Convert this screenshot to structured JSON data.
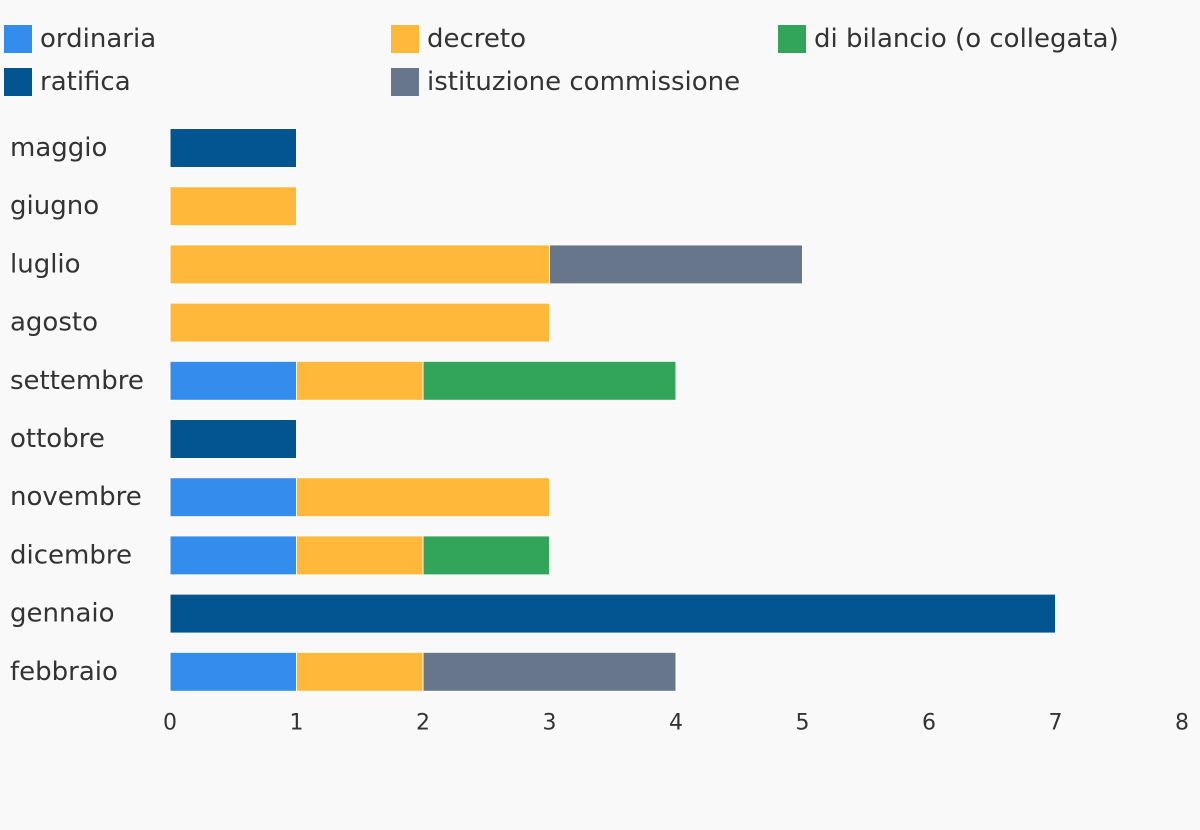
{
  "chart_data": {
    "type": "bar",
    "orientation": "horizontal",
    "stacked": true,
    "title": "",
    "xlabel": "",
    "ylabel": "",
    "categories": [
      "maggio",
      "giugno",
      "luglio",
      "agosto",
      "settembre",
      "ottobre",
      "novembre",
      "dicembre",
      "gennaio",
      "febbraio"
    ],
    "series": [
      {
        "name": "ordinaria",
        "color": "#348ced",
        "values": [
          0,
          0,
          0,
          0,
          1,
          0,
          1,
          1,
          0,
          1
        ]
      },
      {
        "name": "decreto",
        "color": "#ffb83a",
        "values": [
          0,
          1,
          3,
          3,
          1,
          0,
          2,
          1,
          0,
          1
        ]
      },
      {
        "name": "di bilancio (o collegata)",
        "color": "#32a55a",
        "values": [
          0,
          0,
          0,
          0,
          2,
          0,
          0,
          1,
          0,
          0
        ]
      },
      {
        "name": "ratifica",
        "color": "#025591",
        "values": [
          1,
          0,
          0,
          0,
          0,
          1,
          0,
          0,
          7,
          0
        ]
      },
      {
        "name": "istituzione commissione",
        "color": "#68768c",
        "values": [
          0,
          0,
          2,
          0,
          0,
          0,
          0,
          0,
          0,
          2
        ]
      }
    ],
    "xlim": [
      0,
      8
    ],
    "xticks": [
      "0",
      "1",
      "2",
      "3",
      "4",
      "5",
      "6",
      "7",
      "8"
    ],
    "grid": false,
    "legend_position": "top"
  }
}
